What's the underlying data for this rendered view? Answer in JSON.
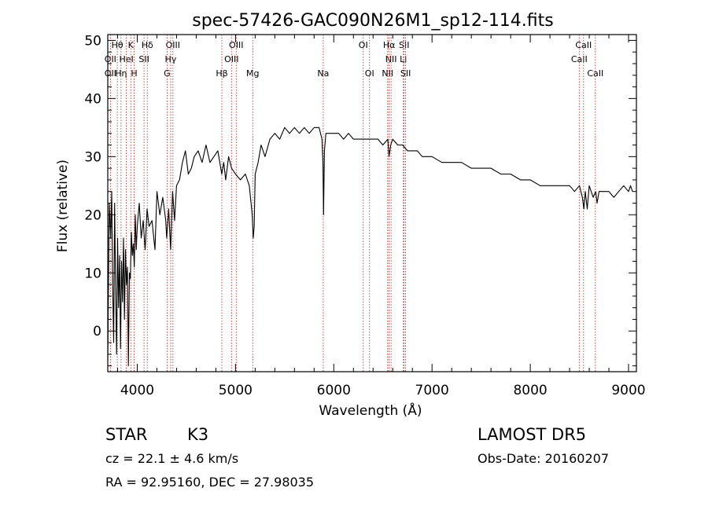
{
  "chart_data": {
    "type": "line",
    "title": "spec-57426-GAC090N26M1_sp12-114.fits",
    "xlabel": "Wavelength (Å)",
    "ylabel": "Flux (relative)",
    "xlim": [
      3700,
      9080
    ],
    "ylim": [
      -7,
      51
    ],
    "xticks": [
      4000,
      5000,
      6000,
      7000,
      8000,
      9000
    ],
    "yticks": [
      0,
      10,
      20,
      30,
      40,
      50
    ],
    "xtick_labels": [
      "4000",
      "5000",
      "6000",
      "7000",
      "8000",
      "9000"
    ],
    "ytick_labels": [
      "0",
      "10",
      "20",
      "30",
      "40",
      "50"
    ],
    "grid": false,
    "series": [
      {
        "x": [
          3700,
          3715,
          3730,
          3740,
          3750,
          3760,
          3770,
          3780,
          3790,
          3800,
          3810,
          3820,
          3830,
          3840,
          3850,
          3860,
          3870,
          3880,
          3890,
          3900,
          3910,
          3920,
          3930,
          3940,
          3950,
          3960,
          3970,
          3980,
          3990,
          4000,
          4020,
          4040,
          4060,
          4080,
          4100,
          4120,
          4150,
          4180,
          4200,
          4230,
          4260,
          4290,
          4300,
          4320,
          4340,
          4360,
          4380,
          4400,
          4430,
          4460,
          4490,
          4520,
          4550,
          4580,
          4620,
          4660,
          4700,
          4740,
          4780,
          4820,
          4860,
          4880,
          4900,
          4930,
          4960,
          5000,
          5050,
          5100,
          5140,
          5170,
          5180,
          5190,
          5200,
          5230,
          5260,
          5300,
          5350,
          5400,
          5450,
          5500,
          5550,
          5600,
          5650,
          5700,
          5750,
          5800,
          5850,
          5880,
          5890,
          5896,
          5905,
          5920,
          5950,
          6000,
          6050,
          6100,
          6150,
          6200,
          6250,
          6300,
          6350,
          6400,
          6450,
          6500,
          6550,
          6562,
          6580,
          6600,
          6650,
          6700,
          6750,
          6800,
          6850,
          6900,
          6950,
          7000,
          7100,
          7200,
          7300,
          7400,
          7500,
          7600,
          7700,
          7800,
          7900,
          8000,
          8100,
          8200,
          8300,
          8400,
          8450,
          8500,
          8530,
          8545,
          8560,
          8580,
          8600,
          8640,
          8665,
          8680,
          8700,
          8750,
          8800,
          8850,
          8900,
          8950,
          9000,
          9020,
          9040
        ],
        "y": [
          -5,
          22,
          16,
          24,
          8,
          -2,
          22,
          7,
          -4,
          16,
          4,
          13,
          -3,
          12,
          5,
          16,
          2,
          14,
          8,
          11,
          -6,
          10,
          9,
          17,
          13,
          15,
          11,
          20,
          14,
          18,
          22,
          16,
          19,
          14,
          21,
          18,
          19,
          14,
          24,
          20,
          23,
          19,
          16,
          21,
          14,
          24,
          19,
          25,
          26,
          29,
          31,
          27,
          28,
          30,
          31,
          29,
          32,
          29,
          30,
          31,
          27,
          29,
          26,
          30,
          28,
          27,
          26,
          27,
          25,
          20,
          16,
          18,
          27,
          29,
          32,
          30,
          33,
          34,
          33,
          35,
          34,
          35,
          34,
          35,
          34,
          35,
          35,
          33,
          29,
          20,
          31,
          34,
          34,
          34,
          34,
          33,
          34,
          33,
          33,
          33,
          33,
          33,
          33,
          32,
          33,
          30,
          32,
          33,
          32,
          32,
          31,
          31,
          31,
          30,
          30,
          30,
          29,
          29,
          29,
          28,
          28,
          28,
          27,
          27,
          26,
          26,
          25,
          25,
          25,
          25,
          24,
          25,
          23,
          21,
          24,
          21,
          25,
          23,
          24,
          22,
          24,
          24,
          24,
          23,
          24,
          25,
          24,
          25,
          24
        ]
      }
    ],
    "line_markers": {
      "rows": [
        [
          {
            "label": "Hθ",
            "x": 3797
          },
          {
            "label": "K",
            "x": 3934
          },
          {
            "label": "Hδ",
            "x": 4102
          },
          {
            "label": "OIII",
            "x": 4363
          },
          {
            "label": "OIII",
            "x": 5007
          },
          {
            "label": "OI",
            "x": 6300
          },
          {
            "label": "Hα",
            "x": 6563
          },
          {
            "label": "SII",
            "x": 6716
          },
          {
            "label": "CaII",
            "x": 8542
          }
        ],
        [
          {
            "label": "OII",
            "x": 3727
          },
          {
            "label": "HeI",
            "x": 3889
          },
          {
            "label": "SII",
            "x": 4069
          },
          {
            "label": "Hγ",
            "x": 4340
          },
          {
            "label": "OIII",
            "x": 4959
          },
          {
            "label": "NII",
            "x": 6583
          },
          {
            "label": "Li",
            "x": 6708
          },
          {
            "label": "CaII",
            "x": 8498
          }
        ],
        [
          {
            "label": "OII",
            "x": 3727
          },
          {
            "label": "Hη",
            "x": 3835
          },
          {
            "label": "H",
            "x": 3968
          },
          {
            "label": "G",
            "x": 4304
          },
          {
            "label": "Hβ",
            "x": 4861
          },
          {
            "label": "Mg",
            "x": 5175
          },
          {
            "label": "Na",
            "x": 5893
          },
          {
            "label": "OI",
            "x": 6364
          },
          {
            "label": "NII",
            "x": 6548
          },
          {
            "label": "SII",
            "x": 6731
          },
          {
            "label": "CaII",
            "x": 8662
          }
        ]
      ],
      "na_label": {
        "label": "Na",
        "x": 5893
      }
    },
    "colors": {
      "spectrum": "#000000",
      "marker_lines": "#b22222",
      "axes": "#000000"
    }
  },
  "info": {
    "object_class": "STAR",
    "subclass": "K3",
    "survey": "LAMOST DR5",
    "velocity": "cz = 22.1 ± 4.6 km/s",
    "obs_date": "Obs-Date: 20160207",
    "coords": "RA =  92.95160, DEC =  27.98035"
  }
}
